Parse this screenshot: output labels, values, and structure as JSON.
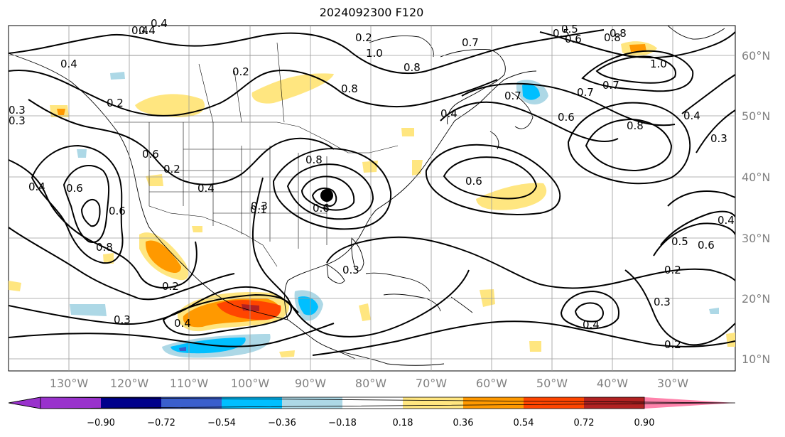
{
  "title": "2024092300 F120",
  "lat_labels": [
    "60°N",
    "50°N",
    "40°N",
    "30°N",
    "20°N",
    "10°N"
  ],
  "lon_labels": [
    "130°W",
    "120°W",
    "110°W",
    "100°W",
    "90°W",
    "80°W",
    "70°W",
    "60°W",
    "50°W",
    "40°W",
    "30°W"
  ],
  "contour_labels": [
    "0.4",
    "0.4",
    "0.3",
    "0.2",
    "0.6",
    "0.8",
    "0.2",
    "0.3",
    "0.4",
    "0.4",
    "0.6",
    "0.6",
    "0.2",
    "0.3",
    "0.4",
    "0.6",
    "0.8",
    "1.0",
    "0.7",
    "0.8",
    "0.8",
    "0.6",
    "0.4",
    "0.6",
    "0.4",
    "0.2",
    "0.3",
    "0.2",
    "0.3",
    "0.5",
    "0.4",
    "0.8",
    "1.0",
    "0.7",
    "0.8",
    "0.4",
    "0.3",
    "0.4",
    "0.5",
    "0.6",
    "0.2",
    "0.3",
    "0.4",
    "0.2",
    "0.5",
    "0.8",
    "0.6",
    "0.7",
    "0.7",
    "0.1"
  ],
  "colorbar": {
    "ticks": [
      "−0.90",
      "−0.72",
      "−0.54",
      "−0.36",
      "−0.18",
      "0.18",
      "0.36",
      "0.54",
      "0.72",
      "0.90"
    ],
    "colors": [
      "#9932cc",
      "#00008b",
      "#3a5fcd",
      "#00bfff",
      "#add8e6",
      "#ffffff",
      "#ffe680",
      "#ff9900",
      "#ff4500",
      "#b22222",
      "#ff82ab"
    ]
  },
  "marker": "storm-center-dot"
}
